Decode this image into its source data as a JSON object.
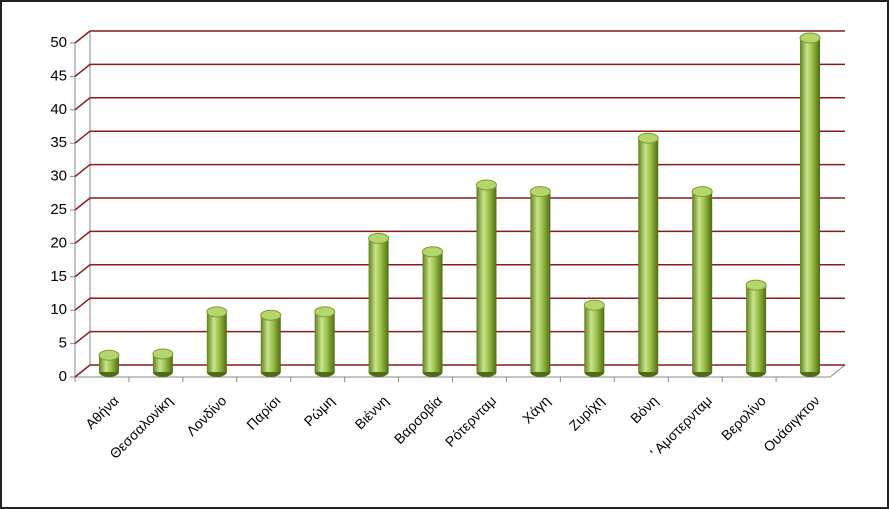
{
  "chart_data": {
    "type": "bar",
    "categories": [
      "Αθήνα",
      "Θεσσαλονίκη",
      "Λονδίνο",
      "Παρίσι",
      "Ρώμη",
      "Βιέννη",
      "Βαρσοβία",
      "Ρότερνταμ",
      "Χάγη",
      "Ζυρίχη",
      "Βόνη",
      "' Αμστερνταμ",
      "Βερολίνο",
      "Ουάσιγκτον"
    ],
    "values": [
      2.5,
      2.7,
      9,
      8.5,
      9,
      20,
      18,
      28,
      27,
      10,
      35,
      27,
      13,
      50
    ],
    "color": "#8db33a",
    "grid_color": "#8b1a1a",
    "ylim": [
      0,
      50
    ],
    "yticks": [
      0,
      5,
      10,
      15,
      20,
      25,
      30,
      35,
      40,
      45,
      50
    ],
    "grid": true
  }
}
